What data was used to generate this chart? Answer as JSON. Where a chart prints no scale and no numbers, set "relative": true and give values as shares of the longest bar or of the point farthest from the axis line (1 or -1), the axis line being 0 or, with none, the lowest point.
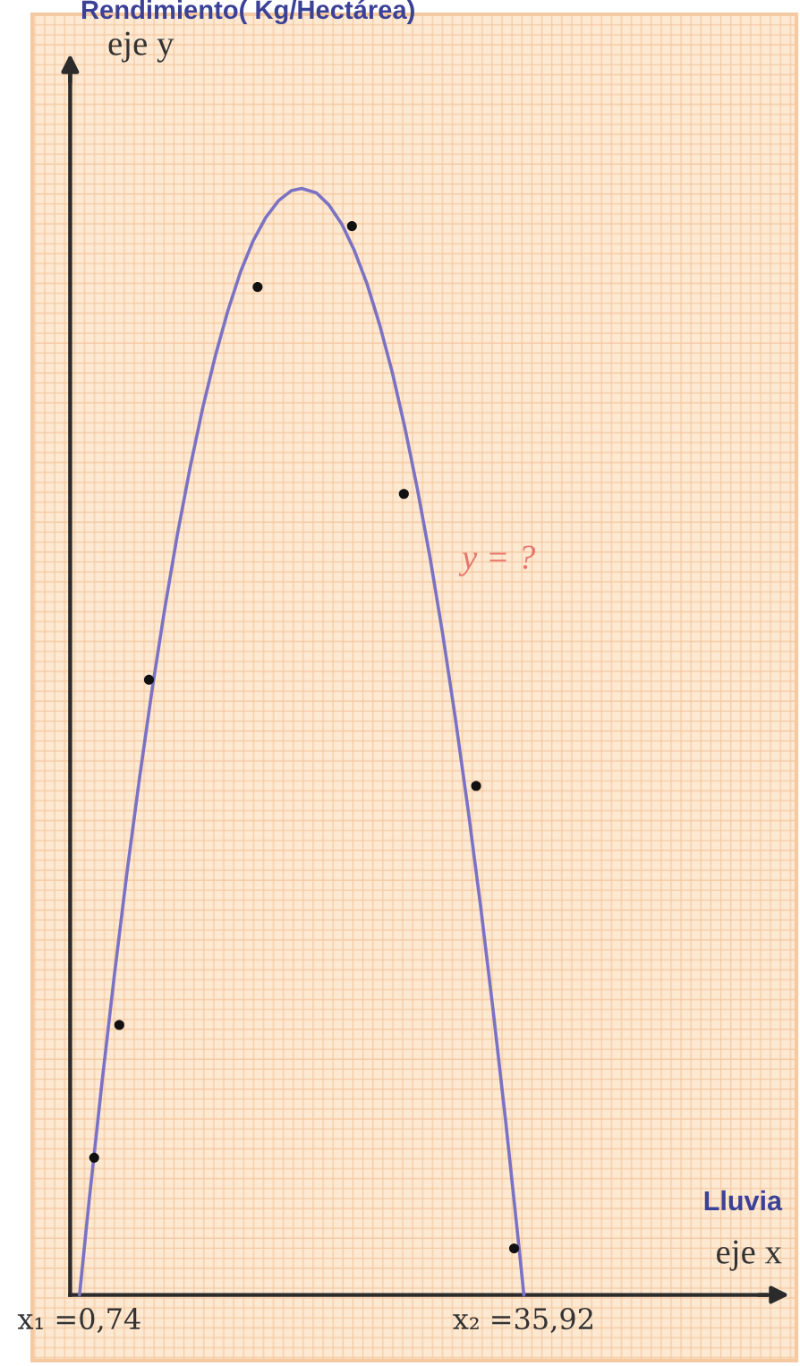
{
  "chart_data": {
    "type": "scatter",
    "title": "Rendimiento( Kg/Hectárea)",
    "xlabel": "Lluvia",
    "annotations": [
      "eje y",
      "y = ?",
      "eje x"
    ],
    "relative": true,
    "xlim": [
      0,
      57.5
    ],
    "xticks": [
      {
        "value": 0.74,
        "label": "x₁ =0,74"
      },
      {
        "value": 35.92,
        "label": "x₂ =35,92"
      }
    ],
    "series": [
      {
        "type": "line",
        "color": "#7b72c4",
        "x": [
          0.74,
          1,
          1.5,
          2.5,
          3.5,
          4.5,
          5.5,
          6.5,
          7.5,
          8.5,
          9.5,
          10.5,
          11.5,
          12.5,
          13.5,
          14.5,
          15.5,
          16.5,
          17.5,
          18.33,
          19.5,
          20.5,
          21.5,
          22.5,
          23.5,
          24.5,
          25.5,
          26.5,
          27.5,
          28.5,
          29.5,
          30.5,
          31.5,
          32.5,
          33.5,
          34.5,
          35.5,
          35.7,
          35.92
        ],
        "values": [
          0,
          0.029,
          0.085,
          0.19,
          0.289,
          0.382,
          0.468,
          0.548,
          0.621,
          0.688,
          0.748,
          0.802,
          0.849,
          0.89,
          0.925,
          0.953,
          0.974,
          0.989,
          0.998,
          1,
          0.996,
          0.985,
          0.968,
          0.944,
          0.914,
          0.877,
          0.834,
          0.784,
          0.728,
          0.666,
          0.597,
          0.521,
          0.439,
          0.351,
          0.256,
          0.155,
          0.047,
          0.025,
          0
        ]
      },
      {
        "marker": "circle",
        "color": "#111111",
        "x": [
          1.9,
          3.89,
          6.24,
          14.84,
          22.31,
          26.42,
          32.14,
          35.15
        ],
        "values": [
          0.124,
          0.244,
          0.556,
          0.911,
          0.966,
          0.724,
          0.46,
          0.042
        ]
      }
    ]
  }
}
